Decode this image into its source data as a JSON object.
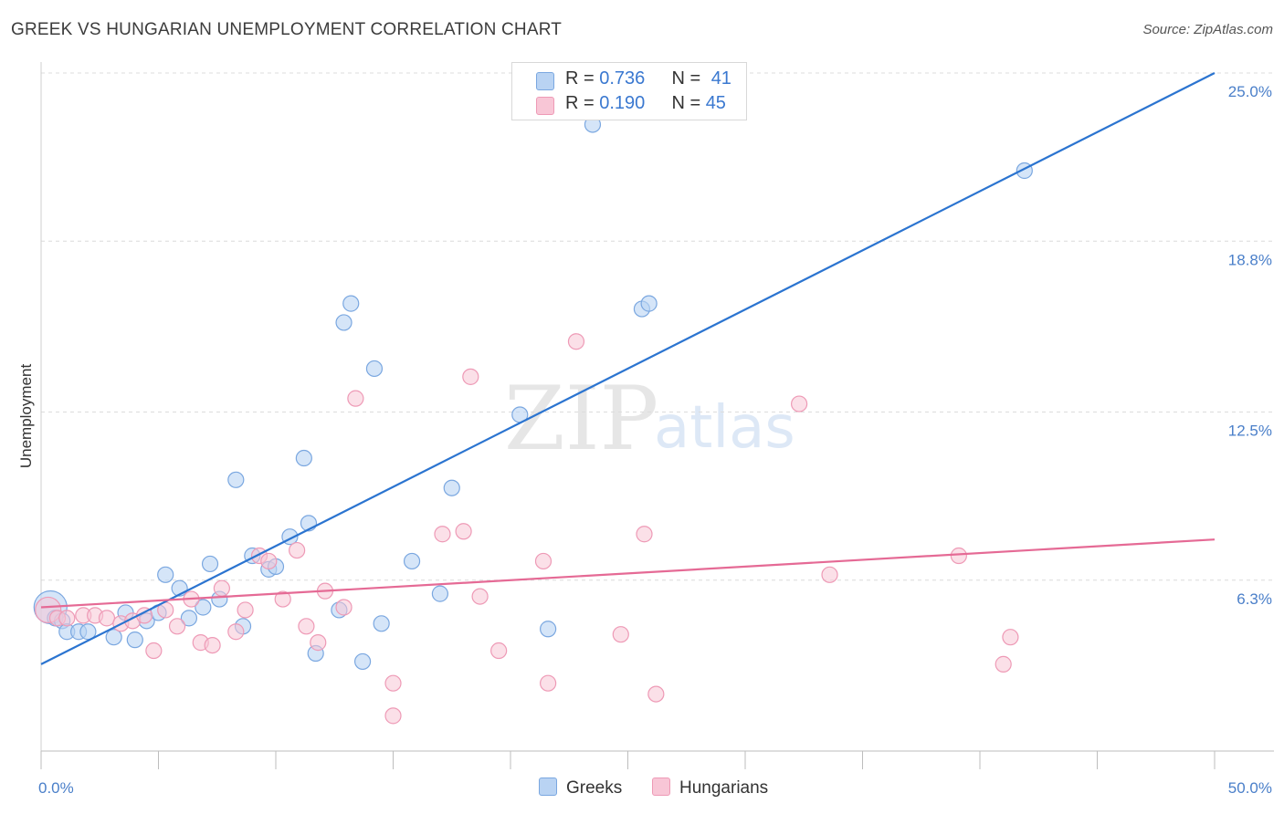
{
  "header": {
    "title": "GREEK VS HUNGARIAN UNEMPLOYMENT CORRELATION CHART",
    "source": "Source: ZipAtlas.com"
  },
  "legend": {
    "greeks": {
      "r_label": "R = ",
      "r_value": "0.736",
      "n_label": "N = ",
      "n_value": "41"
    },
    "hungarians": {
      "r_label": "R = ",
      "r_value": "0.190",
      "n_label": "N = ",
      "n_value": "45"
    }
  },
  "watermark": {
    "zip": "ZIP",
    "atlas": "atlas"
  },
  "colors": {
    "greeks_fill": "#b9d3f3",
    "greeks_stroke": "#7aa7e0",
    "greeks_line": "#2b74d0",
    "hungarians_fill": "#f8c6d6",
    "hungarians_stroke": "#ee9ab6",
    "hungarians_line": "#e56a95"
  },
  "chart_data": {
    "type": "scatter",
    "title": "GREEK VS HUNGARIAN UNEMPLOYMENT CORRELATION CHART",
    "xlabel": "",
    "ylabel": "Unemployment",
    "xlim": [
      0,
      50
    ],
    "ylim": [
      0,
      25
    ],
    "x_tick_labels": [
      "0.0%",
      "50.0%"
    ],
    "y_ticks": [
      6.3,
      12.5,
      18.8,
      25.0
    ],
    "y_tick_labels": [
      "6.3%",
      "12.5%",
      "18.8%",
      "25.0%"
    ],
    "grid": true,
    "legend_position": "top-center",
    "series": [
      {
        "name": "Greeks",
        "r": 0.736,
        "n": 41,
        "trend": {
          "x": [
            0,
            50
          ],
          "y": [
            3.2,
            25.0
          ]
        },
        "points": [
          {
            "x": 0.4,
            "y": 5.3
          },
          {
            "x": 0.6,
            "y": 4.9
          },
          {
            "x": 0.9,
            "y": 4.8
          },
          {
            "x": 1.1,
            "y": 4.4
          },
          {
            "x": 1.6,
            "y": 4.4
          },
          {
            "x": 2.0,
            "y": 4.4
          },
          {
            "x": 3.1,
            "y": 4.2
          },
          {
            "x": 3.6,
            "y": 5.1
          },
          {
            "x": 4.0,
            "y": 4.1
          },
          {
            "x": 4.5,
            "y": 4.8
          },
          {
            "x": 5.0,
            "y": 5.1
          },
          {
            "x": 5.3,
            "y": 6.5
          },
          {
            "x": 5.9,
            "y": 6.0
          },
          {
            "x": 6.3,
            "y": 4.9
          },
          {
            "x": 6.9,
            "y": 5.3
          },
          {
            "x": 7.2,
            "y": 6.9
          },
          {
            "x": 7.6,
            "y": 5.6
          },
          {
            "x": 8.3,
            "y": 10.0
          },
          {
            "x": 8.6,
            "y": 4.6
          },
          {
            "x": 9.0,
            "y": 7.2
          },
          {
            "x": 9.7,
            "y": 6.7
          },
          {
            "x": 10.0,
            "y": 6.8
          },
          {
            "x": 10.6,
            "y": 7.9
          },
          {
            "x": 11.2,
            "y": 10.8
          },
          {
            "x": 11.4,
            "y": 8.4
          },
          {
            "x": 11.7,
            "y": 3.6
          },
          {
            "x": 12.7,
            "y": 5.2
          },
          {
            "x": 12.9,
            "y": 15.8
          },
          {
            "x": 13.2,
            "y": 16.5
          },
          {
            "x": 13.7,
            "y": 3.3
          },
          {
            "x": 14.2,
            "y": 14.1
          },
          {
            "x": 14.5,
            "y": 4.7
          },
          {
            "x": 15.8,
            "y": 7.0
          },
          {
            "x": 17.0,
            "y": 5.8
          },
          {
            "x": 17.5,
            "y": 9.7
          },
          {
            "x": 20.4,
            "y": 12.4
          },
          {
            "x": 21.6,
            "y": 4.5
          },
          {
            "x": 23.5,
            "y": 23.1
          },
          {
            "x": 25.6,
            "y": 16.3
          },
          {
            "x": 25.9,
            "y": 16.5
          },
          {
            "x": 41.9,
            "y": 21.4
          }
        ]
      },
      {
        "name": "Hungarians",
        "r": 0.19,
        "n": 45,
        "trend": {
          "x": [
            0,
            50
          ],
          "y": [
            5.3,
            7.8
          ]
        },
        "points": [
          {
            "x": 0.3,
            "y": 5.2
          },
          {
            "x": 0.7,
            "y": 4.9
          },
          {
            "x": 1.1,
            "y": 4.9
          },
          {
            "x": 1.8,
            "y": 5.0
          },
          {
            "x": 2.3,
            "y": 5.0
          },
          {
            "x": 2.8,
            "y": 4.9
          },
          {
            "x": 3.4,
            "y": 4.7
          },
          {
            "x": 3.9,
            "y": 4.8
          },
          {
            "x": 4.4,
            "y": 5.0
          },
          {
            "x": 4.8,
            "y": 3.7
          },
          {
            "x": 5.3,
            "y": 5.2
          },
          {
            "x": 5.8,
            "y": 4.6
          },
          {
            "x": 6.4,
            "y": 5.6
          },
          {
            "x": 6.8,
            "y": 4.0
          },
          {
            "x": 7.3,
            "y": 3.9
          },
          {
            "x": 7.7,
            "y": 6.0
          },
          {
            "x": 8.3,
            "y": 4.4
          },
          {
            "x": 8.7,
            "y": 5.2
          },
          {
            "x": 9.3,
            "y": 7.2
          },
          {
            "x": 9.7,
            "y": 7.0
          },
          {
            "x": 10.3,
            "y": 5.6
          },
          {
            "x": 10.9,
            "y": 7.4
          },
          {
            "x": 11.3,
            "y": 4.6
          },
          {
            "x": 11.8,
            "y": 4.0
          },
          {
            "x": 12.1,
            "y": 5.9
          },
          {
            "x": 12.9,
            "y": 5.3
          },
          {
            "x": 13.4,
            "y": 13.0
          },
          {
            "x": 15.0,
            "y": 2.5
          },
          {
            "x": 15.0,
            "y": 1.3
          },
          {
            "x": 17.1,
            "y": 8.0
          },
          {
            "x": 18.0,
            "y": 8.1
          },
          {
            "x": 18.3,
            "y": 13.8
          },
          {
            "x": 18.7,
            "y": 5.7
          },
          {
            "x": 19.5,
            "y": 3.7
          },
          {
            "x": 21.4,
            "y": 7.0
          },
          {
            "x": 21.6,
            "y": 2.5
          },
          {
            "x": 22.8,
            "y": 15.1
          },
          {
            "x": 24.7,
            "y": 4.3
          },
          {
            "x": 25.7,
            "y": 8.0
          },
          {
            "x": 26.2,
            "y": 2.1
          },
          {
            "x": 32.3,
            "y": 12.8
          },
          {
            "x": 33.6,
            "y": 6.5
          },
          {
            "x": 39.1,
            "y": 7.2
          },
          {
            "x": 41.0,
            "y": 3.2
          },
          {
            "x": 41.3,
            "y": 4.2
          }
        ]
      }
    ]
  },
  "bottom_legend": {
    "greeks_label": "Greeks",
    "hungarians_label": "Hungarians"
  }
}
